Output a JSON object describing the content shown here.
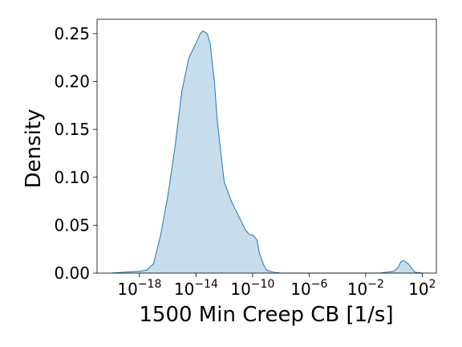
{
  "chart_data": {
    "type": "area",
    "title": "",
    "xlabel": "1500 Min Creep CB [1/s]",
    "ylabel": "Density",
    "x_scale": "log10",
    "xlim": [
      1e-21,
      1000.0
    ],
    "ylim": [
      0,
      0.265
    ],
    "grid": false,
    "legend": "none",
    "x_ticks": [
      {
        "value": 1e-18,
        "base": "10",
        "exp": "−18"
      },
      {
        "value": 1e-14,
        "base": "10",
        "exp": "−14"
      },
      {
        "value": 1e-10,
        "base": "10",
        "exp": "−10"
      },
      {
        "value": 1e-06,
        "base": "10",
        "exp": "−6"
      },
      {
        "value": 0.01,
        "base": "10",
        "exp": "−2"
      },
      {
        "value": 100.0,
        "base": "10",
        "exp": "2"
      }
    ],
    "y_ticks": [
      {
        "value": 0.0,
        "label": "0.00"
      },
      {
        "value": 0.05,
        "label": "0.05"
      },
      {
        "value": 0.1,
        "label": "0.10"
      },
      {
        "value": 0.15,
        "label": "0.15"
      },
      {
        "value": 0.2,
        "label": "0.20"
      },
      {
        "value": 0.25,
        "label": "0.25"
      }
    ],
    "series": [
      {
        "x": [
          1e-20,
          1e-19,
          1e-18,
          3.16e-18,
          1e-17,
          3.16e-17,
          1e-16,
          3.16e-16,
          1e-15,
          3.16e-15,
          1e-14,
          2e-14,
          3.16e-14,
          6.3e-14,
          1e-13,
          2e-13,
          3.16e-13,
          6.3e-13,
          1e-12,
          3.16e-12,
          1e-11,
          3.16e-11,
          6.3e-11,
          1e-10,
          2e-10,
          3.16e-10,
          6.3e-10,
          1e-09,
          3.16e-09,
          1e-08,
          1e-06,
          0.0001,
          0.01,
          0.1,
          1,
          2,
          3.16,
          5,
          10,
          20,
          31.6,
          100
        ],
        "y": [
          0.0,
          0.001,
          0.002,
          0.003,
          0.01,
          0.04,
          0.08,
          0.13,
          0.19,
          0.225,
          0.24,
          0.25,
          0.253,
          0.25,
          0.24,
          0.2,
          0.16,
          0.12,
          0.095,
          0.075,
          0.06,
          0.045,
          0.04,
          0.04,
          0.035,
          0.02,
          0.008,
          0.003,
          0.001,
          0.0,
          0.0,
          0.0,
          0.0,
          0.0,
          0.002,
          0.006,
          0.012,
          0.013,
          0.01,
          0.004,
          0.001,
          0.0
        ],
        "color": "#1f77b4",
        "fill": "#1f77b4",
        "fill_opacity": 0.25
      }
    ]
  }
}
